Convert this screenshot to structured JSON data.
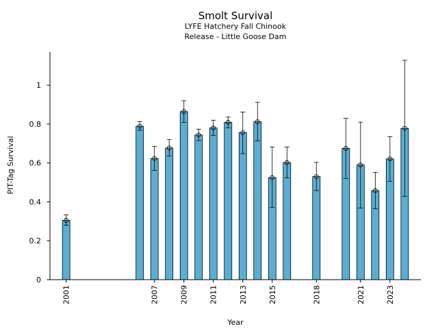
{
  "chart_data": {
    "type": "bar",
    "title": "Smolt Survival",
    "subtitle_lines": [
      "LYFE Hatchery Fall Chinook",
      "Release - Little Goose Dam"
    ],
    "xlabel": "Year",
    "ylabel": "PIT-Tag Survival",
    "xlim": [
      1999.9,
      2025.1
    ],
    "ylim": [
      0,
      1.17
    ],
    "yticks": [
      0,
      0.2,
      0.4,
      0.6,
      0.8,
      1
    ],
    "ytick_labels": [
      "0",
      "0.2",
      "0.4",
      "0.6",
      "0.8",
      "1"
    ],
    "xtick_labels": [
      "2001",
      "2007",
      "2009",
      "2011",
      "2013",
      "2015",
      "2018",
      "2021",
      "2023"
    ],
    "grid": false,
    "legend": "none",
    "bar_color": "#5aaed3",
    "series": [
      {
        "x": [
          2001,
          2006,
          2007,
          2008,
          2009,
          2010,
          2011,
          2012,
          2013,
          2014,
          2015,
          2016,
          2018,
          2020,
          2021,
          2022,
          2023,
          2024
        ],
        "values": [
          0.305,
          0.789,
          0.623,
          0.677,
          0.864,
          0.744,
          0.78,
          0.809,
          0.756,
          0.812,
          0.525,
          0.602,
          0.53,
          0.675,
          0.59,
          0.458,
          0.621,
          0.778
        ],
        "lower": [
          0.28,
          0.768,
          0.562,
          0.635,
          0.808,
          0.715,
          0.742,
          0.78,
          0.648,
          0.713,
          0.372,
          0.523,
          0.458,
          0.52,
          0.368,
          0.365,
          0.505,
          0.428
        ],
        "upper": [
          0.333,
          0.813,
          0.685,
          0.72,
          0.92,
          0.774,
          0.82,
          0.836,
          0.862,
          0.912,
          0.682,
          0.682,
          0.603,
          0.83,
          0.81,
          0.552,
          0.735,
          1.128
        ]
      }
    ]
  }
}
